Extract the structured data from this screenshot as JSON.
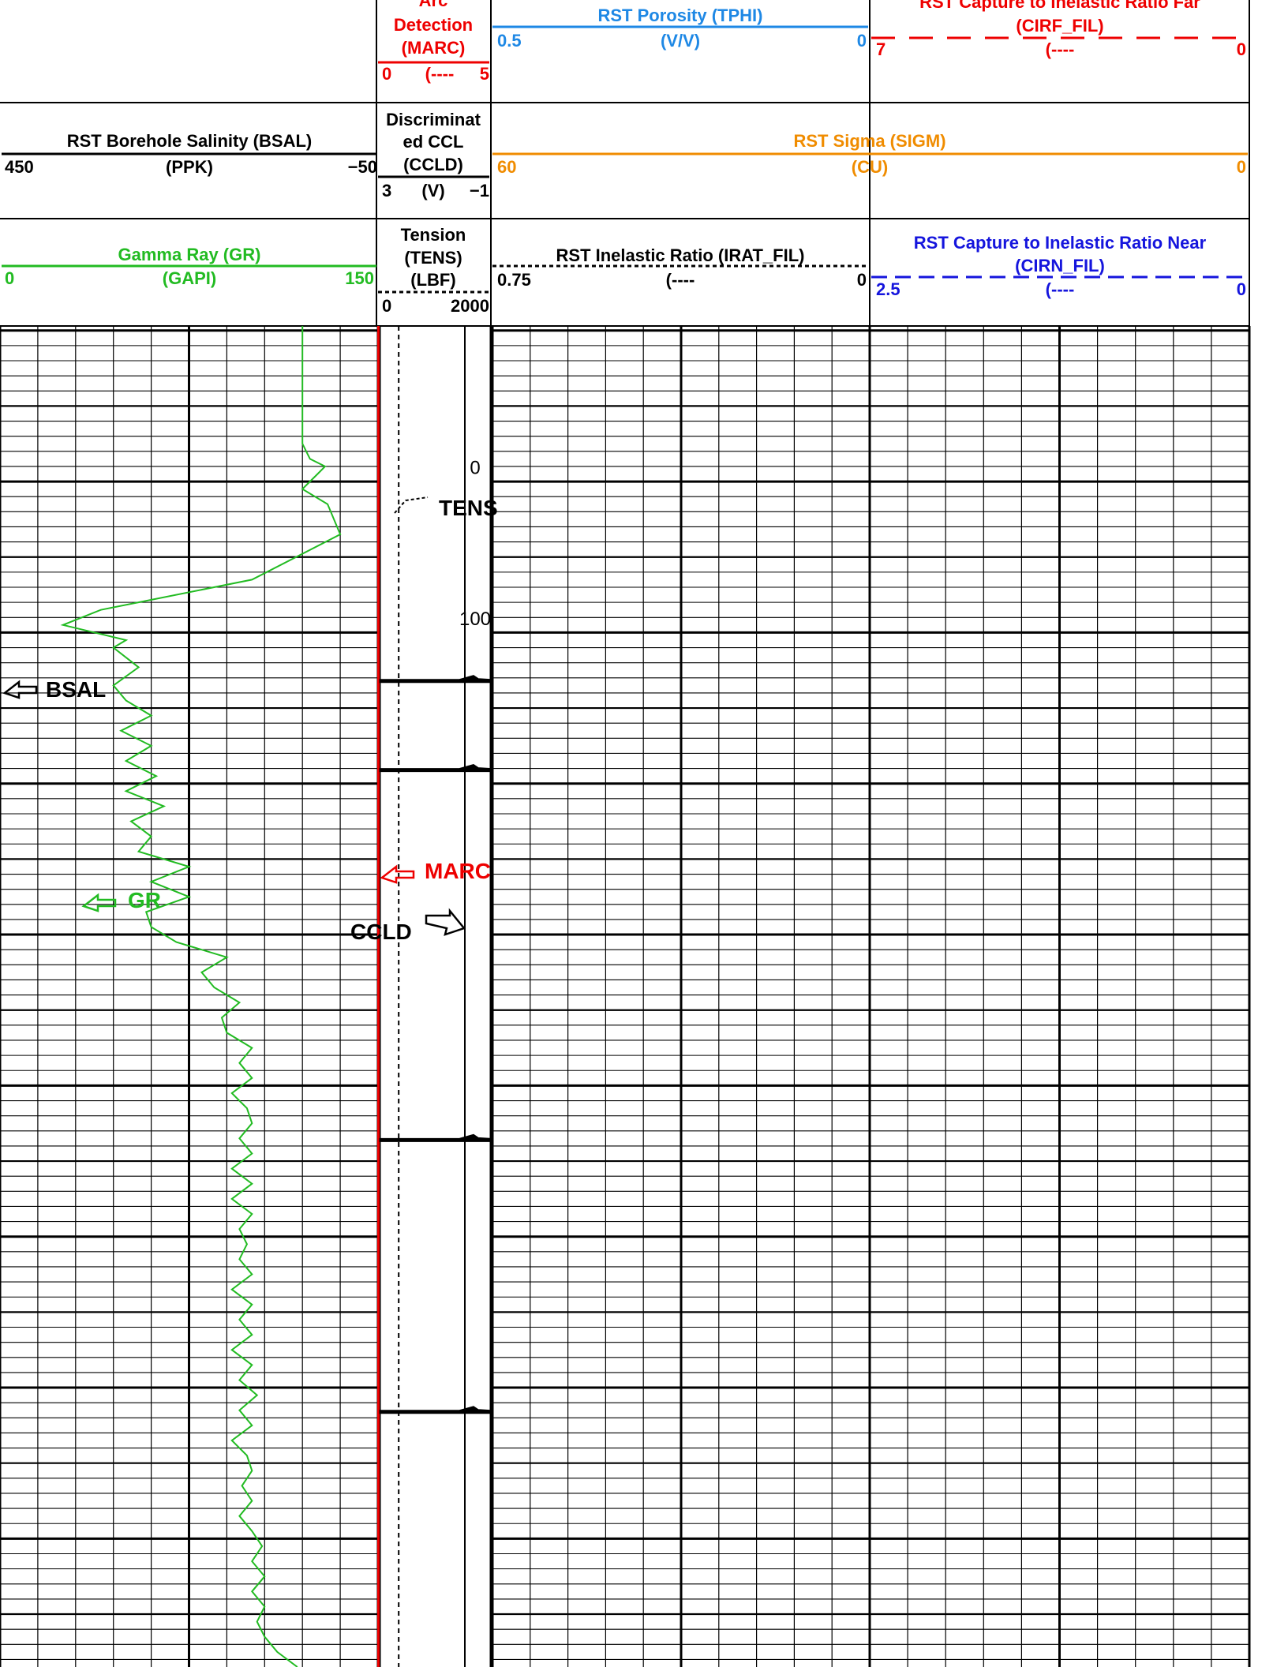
{
  "chart_data": {
    "type": "line",
    "header": {
      "row1": {
        "marc_title": [
          "Arc",
          "Detection",
          "(MARC)"
        ],
        "marc_scale": {
          "left": "0",
          "mid": "(----",
          "right": "5"
        },
        "tphi_title": "RST Porosity (TPHI)",
        "tphi_unit": "(V/V)",
        "tphi_scale": {
          "left": "0.5",
          "right": "0"
        },
        "cirf_title": [
          "RST Capture to Inelastic Ratio Far",
          "(CIRF_FIL)"
        ],
        "cirf_unit": "(----",
        "cirf_scale": {
          "left": "7",
          "right": "0"
        }
      },
      "row2": {
        "bsal_title": "RST Borehole Salinity (BSAL)",
        "bsal_unit": "(PPK)",
        "bsal_scale": {
          "left": "450",
          "right": "−50"
        },
        "ccld_title": [
          "Discriminat",
          "ed CCL",
          "(CCLD)"
        ],
        "ccld_scale": {
          "left": "3",
          "mid": "(V)",
          "right": "−1"
        },
        "sigm_title": "RST Sigma (SIGM)",
        "sigm_unit": "(CU)",
        "sigm_scale": {
          "left": "60",
          "right": "0"
        }
      },
      "row3": {
        "gr_title": "Gamma Ray (GR)",
        "gr_unit": "(GAPI)",
        "gr_scale": {
          "left": "0",
          "right": "150"
        },
        "tens_title": [
          "Tension",
          "(TENS)",
          "(LBF)"
        ],
        "tens_scale": {
          "left": "0",
          "right": "2000"
        },
        "irat_title": "RST Inelastic Ratio (IRAT_FIL)",
        "irat_unit": "(----",
        "irat_scale": {
          "left": "0.75",
          "right": "0"
        },
        "cirn_title": [
          "RST Capture to Inelastic Ratio Near",
          "(CIRN_FIL)"
        ],
        "cirn_unit": "(----",
        "cirn_scale": {
          "left": "2.5",
          "right": "0"
        }
      }
    },
    "depth_labels": [
      "0",
      "100"
    ],
    "annotations": [
      "TENS",
      "BSAL",
      "MARC",
      "GR",
      "CCLD"
    ],
    "colors": {
      "gr": "#22bb22",
      "marc": "#ee0000",
      "tphi": "#1e88e5",
      "sigm": "#f08c00",
      "cirn": "#1515dd",
      "cirf": "#ee0000",
      "black": "#000000"
    },
    "gr_curve": [
      [
        -98,
        120
      ],
      [
        -20,
        120
      ],
      [
        -10,
        123
      ],
      [
        -5,
        129
      ],
      [
        0,
        126
      ],
      [
        10,
        120
      ],
      [
        20,
        130
      ],
      [
        40,
        135
      ],
      [
        70,
        100
      ],
      [
        90,
        40
      ],
      [
        100,
        25
      ],
      [
        110,
        50
      ],
      [
        115,
        45
      ],
      [
        128,
        55
      ],
      [
        140,
        45
      ],
      [
        150,
        50
      ],
      [
        160,
        60
      ],
      [
        170,
        48
      ],
      [
        180,
        60
      ],
      [
        190,
        50
      ],
      [
        200,
        62
      ],
      [
        210,
        50
      ],
      [
        220,
        65
      ],
      [
        230,
        52
      ],
      [
        240,
        60
      ],
      [
        250,
        55
      ],
      [
        260,
        75
      ],
      [
        270,
        60
      ],
      [
        280,
        75
      ],
      [
        290,
        58
      ],
      [
        300,
        60
      ],
      [
        310,
        70
      ],
      [
        320,
        90
      ],
      [
        330,
        80
      ],
      [
        340,
        85
      ],
      [
        350,
        95
      ],
      [
        360,
        88
      ],
      [
        370,
        90
      ],
      [
        380,
        100
      ],
      [
        390,
        95
      ],
      [
        400,
        100
      ],
      [
        410,
        92
      ],
      [
        420,
        98
      ],
      [
        430,
        100
      ],
      [
        440,
        95
      ],
      [
        450,
        100
      ],
      [
        460,
        92
      ],
      [
        470,
        100
      ],
      [
        480,
        92
      ],
      [
        490,
        100
      ],
      [
        500,
        95
      ],
      [
        510,
        98
      ],
      [
        520,
        95
      ],
      [
        530,
        100
      ],
      [
        540,
        92
      ],
      [
        550,
        100
      ],
      [
        560,
        95
      ],
      [
        570,
        100
      ],
      [
        580,
        92
      ],
      [
        590,
        100
      ],
      [
        600,
        95
      ],
      [
        610,
        102
      ],
      [
        620,
        95
      ],
      [
        630,
        100
      ],
      [
        640,
        92
      ],
      [
        650,
        98
      ],
      [
        660,
        100
      ],
      [
        670,
        96
      ],
      [
        680,
        100
      ],
      [
        690,
        95
      ],
      [
        700,
        100
      ],
      [
        710,
        104
      ],
      [
        720,
        100
      ],
      [
        730,
        105
      ],
      [
        740,
        100
      ],
      [
        750,
        105
      ],
      [
        760,
        102
      ],
      [
        770,
        105
      ],
      [
        780,
        110
      ],
      [
        790,
        118
      ]
    ],
    "tens_curve": [
      [
        -98,
        1520
      ],
      [
        100,
        1520
      ],
      [
        450,
        1520
      ],
      [
        750,
        1520
      ],
      [
        790,
        1520
      ]
    ],
    "ccl_spikes": [
      136,
      195,
      440,
      620
    ],
    "marc_curve": [
      [
        -98,
        0
      ],
      [
        790,
        0
      ]
    ]
  }
}
